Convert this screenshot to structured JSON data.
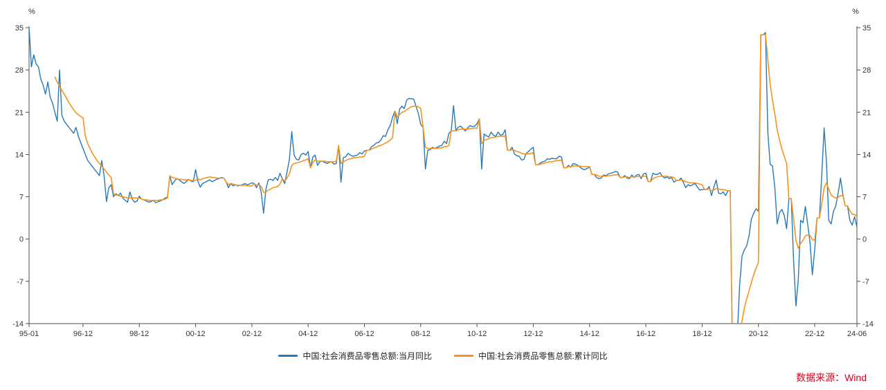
{
  "chart_data": {
    "type": "line",
    "title": "",
    "y_unit": "%",
    "ylim": [
      -14,
      35
    ],
    "yticks": [
      -14,
      -7,
      0,
      7,
      14,
      21,
      28,
      35
    ],
    "x_start": "1995-01",
    "x_end": "2024-06",
    "xtick_labels": [
      "95-01",
      "96-12",
      "98-12",
      "00-12",
      "02-12",
      "04-12",
      "06-12",
      "08-12",
      "10-12",
      "12-12",
      "14-12",
      "16-12",
      "18-12",
      "20-12",
      "22-12",
      "24-06"
    ],
    "grid": false,
    "legend_position": "bottom-center",
    "series": [
      {
        "name": "中国:社会消费品零售总额:当月同比",
        "color": "#2878b5",
        "start": "1995-01",
        "values": [
          35.0,
          28.5,
          30.5,
          29.0,
          28.5,
          26.5,
          25.5,
          24.0,
          26.0,
          23.5,
          22.5,
          21.0,
          19.5,
          28.0,
          20.5,
          19.5,
          19.0,
          18.5,
          18.0,
          17.5,
          18.5,
          17.0,
          16.0,
          15.0,
          14.0,
          13.0,
          12.5,
          12.0,
          11.5,
          11.0,
          10.5,
          13.0,
          10.5,
          6.2,
          8.5,
          9.0,
          7.0,
          7.5,
          7.2,
          7.6,
          6.8,
          6.4,
          6.1,
          7.8,
          6.6,
          6.1,
          6.3,
          7.1,
          6.6,
          6.5,
          6.3,
          6.1,
          6.2,
          6.4,
          6.0,
          6.2,
          6.3,
          6.5,
          6.8,
          6.9,
          10.5,
          9.0,
          9.6,
          10.0,
          9.8,
          9.5,
          9.2,
          9.5,
          9.9,
          9.6,
          9.5,
          11.5,
          9.6,
          8.6,
          9.2,
          9.4,
          9.6,
          9.8,
          9.5,
          9.7,
          9.9,
          10.0,
          10.2,
          10.1,
          9.5,
          8.5,
          9.2,
          8.8,
          9.0,
          8.8,
          8.9,
          9.0,
          9.2,
          9.0,
          9.1,
          9.3,
          9.2,
          8.5,
          9.3,
          7.7,
          4.3,
          8.3,
          9.8,
          9.9,
          9.7,
          10.2,
          9.7,
          10.9,
          10.0,
          9.2,
          11.1,
          13.2,
          17.8,
          13.9,
          13.2,
          13.1,
          14.0,
          14.2,
          13.9,
          14.5,
          11.8,
          13.6,
          13.9,
          12.2,
          12.8,
          12.9,
          12.7,
          12.5,
          12.7,
          12.8,
          12.4,
          12.5,
          15.5,
          9.4,
          13.5,
          13.6,
          14.2,
          13.9,
          13.7,
          13.8,
          13.9,
          14.3,
          14.1,
          14.6,
          14.7,
          14.7,
          15.3,
          15.5,
          15.9,
          16.0,
          16.4,
          17.1,
          17.0,
          18.1,
          18.8,
          20.2,
          21.2,
          19.1,
          21.5,
          22.0,
          21.6,
          23.0,
          23.3,
          23.2,
          23.2,
          22.0,
          20.8,
          19.0,
          18.5,
          11.6,
          14.7,
          14.8,
          15.2,
          15.0,
          15.2,
          15.4,
          15.5,
          16.2,
          15.8,
          17.5,
          17.9,
          22.1,
          18.0,
          18.5,
          18.7,
          18.3,
          17.9,
          18.4,
          18.8,
          18.6,
          18.7,
          19.1,
          19.9,
          11.6,
          17.4,
          17.1,
          16.9,
          17.7,
          17.2,
          17.0,
          17.7,
          17.2,
          17.3,
          18.1,
          14.7,
          14.7,
          15.2,
          14.1,
          13.8,
          13.7,
          13.1,
          13.2,
          14.2,
          14.5,
          14.9,
          15.2,
          12.3,
          12.3,
          12.6,
          12.8,
          12.9,
          13.3,
          13.2,
          13.4,
          13.3,
          13.3,
          13.7,
          13.6,
          11.8,
          11.8,
          12.2,
          11.9,
          12.5,
          12.4,
          12.2,
          11.9,
          11.6,
          11.5,
          11.7,
          11.9,
          10.7,
          10.7,
          10.2,
          10.0,
          10.1,
          10.6,
          10.5,
          10.8,
          10.9,
          11.0,
          11.2,
          11.1,
          10.2,
          10.2,
          10.5,
          10.1,
          10.0,
          10.6,
          10.2,
          10.6,
          10.7,
          10.0,
          10.8,
          10.9,
          9.5,
          9.5,
          10.9,
          10.7,
          10.7,
          11.0,
          10.4,
          10.1,
          10.3,
          10.0,
          10.2,
          9.4,
          9.7,
          9.7,
          10.1,
          9.4,
          8.5,
          9.0,
          8.8,
          9.0,
          9.2,
          8.6,
          8.1,
          8.2,
          8.2,
          8.2,
          8.7,
          7.2,
          8.6,
          9.8,
          7.6,
          7.5,
          7.8,
          7.2,
          8.0,
          8.0,
          -20.5,
          -20.5,
          -15.8,
          -7.5,
          -2.8,
          -1.8,
          -1.1,
          0.5,
          3.3,
          4.3,
          5.0,
          4.6,
          33.8,
          33.8,
          34.2,
          17.7,
          12.4,
          12.1,
          8.5,
          2.5,
          4.4,
          4.9,
          3.9,
          1.7,
          6.7,
          6.7,
          -3.5,
          -11.1,
          -6.7,
          3.1,
          2.7,
          5.4,
          2.5,
          -0.5,
          -5.9,
          -1.8,
          3.5,
          3.5,
          10.6,
          18.4,
          12.7,
          3.1,
          2.5,
          4.6,
          5.5,
          7.6,
          10.1,
          7.4,
          5.5,
          5.5,
          3.1,
          2.3,
          3.7,
          2.0
        ]
      },
      {
        "name": "中国:社会消费品零售总额:累计同比",
        "color": "#f7921e",
        "start": "1995-12",
        "values": [
          26.8,
          26.0,
          25.3,
          24.6,
          24.0,
          23.3,
          22.6,
          22.0,
          21.4,
          20.9,
          20.6,
          20.3,
          20.1,
          17.0,
          15.8,
          15.0,
          14.2,
          13.6,
          13.0,
          12.5,
          12.1,
          11.6,
          11.1,
          10.6,
          10.2,
          7.5,
          7.3,
          7.2,
          7.1,
          7.0,
          6.9,
          6.8,
          6.8,
          6.8,
          6.8,
          6.8,
          6.8,
          6.6,
          6.5,
          6.5,
          6.4,
          6.4,
          6.4,
          6.4,
          6.4,
          6.5,
          6.5,
          6.6,
          6.8,
          10.5,
          10.2,
          10.1,
          10.0,
          9.9,
          9.9,
          9.8,
          9.8,
          9.8,
          9.7,
          9.7,
          9.7,
          10.0,
          9.8,
          10.0,
          10.1,
          10.2,
          10.3,
          10.2,
          10.2,
          10.1,
          10.1,
          10.1,
          10.1,
          9.5,
          9.0,
          9.2,
          9.1,
          9.0,
          8.9,
          8.9,
          8.9,
          8.9,
          8.8,
          8.8,
          8.8,
          9.2,
          8.9,
          9.0,
          8.7,
          7.7,
          7.8,
          8.1,
          8.3,
          8.5,
          8.6,
          8.7,
          9.1,
          10.0,
          9.6,
          10.1,
          10.8,
          12.2,
          12.5,
          12.6,
          12.7,
          12.8,
          13.0,
          13.1,
          13.3,
          11.8,
          12.7,
          13.1,
          12.9,
          12.9,
          12.9,
          12.9,
          12.8,
          12.8,
          12.8,
          12.8,
          12.9,
          15.5,
          12.5,
          12.8,
          13.0,
          13.2,
          13.3,
          13.4,
          13.5,
          13.5,
          13.6,
          13.6,
          13.7,
          14.7,
          14.7,
          14.9,
          15.1,
          15.2,
          15.4,
          15.5,
          15.7,
          15.9,
          16.1,
          16.4,
          16.8,
          21.2,
          20.2,
          20.6,
          21.0,
          21.1,
          21.4,
          21.7,
          21.9,
          22.0,
          22.0,
          21.9,
          21.6,
          18.5,
          15.2,
          15.0,
          15.0,
          15.0,
          15.0,
          15.0,
          15.1,
          15.1,
          15.3,
          15.3,
          15.5,
          17.9,
          17.9,
          17.9,
          18.1,
          18.2,
          18.2,
          18.2,
          18.2,
          18.3,
          18.3,
          18.4,
          18.3,
          19.9,
          15.8,
          16.3,
          16.5,
          16.6,
          16.8,
          16.8,
          16.9,
          17.0,
          17.0,
          17.0,
          17.1,
          14.7,
          14.7,
          14.8,
          14.7,
          14.5,
          14.4,
          14.2,
          14.1,
          14.1,
          14.1,
          14.2,
          14.3,
          12.3,
          12.3,
          12.4,
          12.5,
          12.6,
          12.7,
          12.8,
          12.8,
          12.9,
          13.0,
          13.0,
          13.1,
          11.8,
          11.8,
          12.0,
          12.0,
          12.1,
          12.1,
          12.1,
          12.1,
          12.0,
          12.0,
          12.0,
          12.0,
          10.7,
          10.7,
          10.6,
          10.4,
          10.4,
          10.4,
          10.4,
          10.5,
          10.5,
          10.6,
          10.6,
          10.7,
          10.2,
          10.2,
          10.3,
          10.3,
          10.2,
          10.3,
          10.3,
          10.3,
          10.4,
          10.3,
          10.4,
          10.4,
          9.5,
          9.5,
          10.0,
          10.2,
          10.3,
          10.4,
          10.4,
          10.4,
          10.4,
          10.3,
          10.3,
          10.2,
          9.7,
          9.7,
          9.8,
          9.7,
          9.5,
          9.4,
          9.3,
          9.3,
          9.3,
          9.2,
          9.1,
          9.0,
          8.2,
          8.2,
          8.3,
          8.0,
          8.1,
          8.4,
          8.3,
          8.2,
          8.2,
          8.1,
          8.0,
          8.0,
          -20.5,
          -20.5,
          -19.0,
          -16.2,
          -13.5,
          -11.4,
          -9.9,
          -8.6,
          -7.2,
          -5.9,
          -4.8,
          -3.9,
          33.8,
          33.8,
          33.9,
          29.6,
          25.7,
          23.0,
          20.7,
          18.1,
          16.4,
          14.9,
          13.7,
          12.5,
          6.7,
          6.7,
          3.3,
          -0.2,
          -1.5,
          -0.7,
          -0.2,
          0.5,
          0.7,
          0.6,
          -0.1,
          -0.2,
          3.5,
          3.5,
          5.8,
          8.5,
          9.3,
          8.2,
          7.3,
          7.0,
          6.8,
          6.9,
          7.2,
          7.2,
          5.5,
          5.5,
          4.7,
          4.1,
          4.1,
          3.7
        ]
      }
    ],
    "axis_color": "#4d4d4d",
    "tick_text_color": "#333333"
  },
  "footer": {
    "source_label": "数据来源：Wind",
    "color": "#d9001b"
  }
}
